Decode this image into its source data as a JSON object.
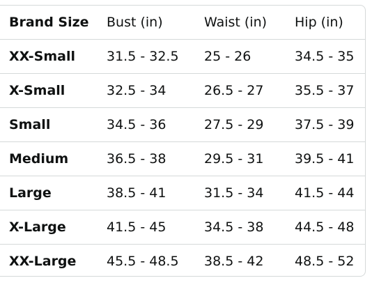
{
  "table": {
    "headers": [
      "Brand Size",
      "Bust (in)",
      "Waist (in)",
      "Hip (in)"
    ],
    "rows": [
      [
        "XX-Small",
        "31.5 - 32.5",
        "25 - 26",
        "34.5 - 35"
      ],
      [
        "X-Small",
        "32.5 - 34",
        "26.5 - 27",
        "35.5 - 37"
      ],
      [
        "Small",
        "34.5 - 36",
        "27.5 - 29",
        "37.5 - 39"
      ],
      [
        "Medium",
        "36.5 - 38",
        "29.5 - 31",
        "39.5 - 41"
      ],
      [
        "Large",
        "38.5 - 41",
        "31.5 - 34",
        "41.5 - 44"
      ],
      [
        "X-Large",
        "41.5 - 45",
        "34.5 - 38",
        "44.5 - 48"
      ],
      [
        "XX-Large",
        "45.5 - 48.5",
        "38.5 - 42",
        "48.5 - 52"
      ]
    ]
  },
  "colors": {
    "text": "#0f1111",
    "border": "#d5d9d9",
    "background": "#ffffff"
  }
}
